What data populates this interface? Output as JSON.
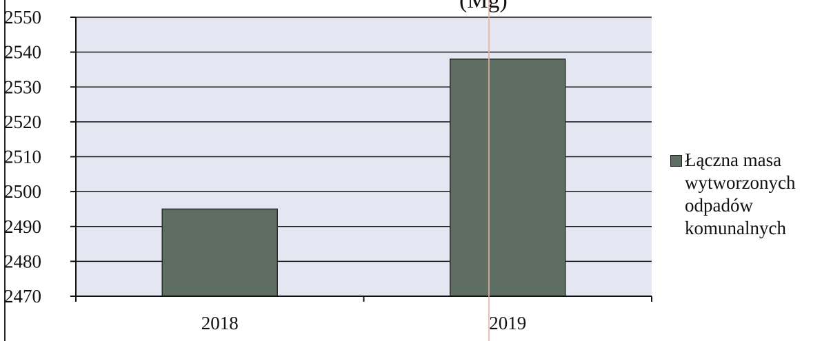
{
  "title_fragment": "(Mg)",
  "chart_data": {
    "type": "bar",
    "categories": [
      "2018",
      "2019"
    ],
    "series": [
      {
        "name": "Łączna masa wytworzonych odpadów komunalnych",
        "values": [
          2495,
          2538
        ]
      }
    ],
    "ylim": [
      2470,
      2550
    ],
    "yticks": [
      2470,
      2480,
      2490,
      2500,
      2510,
      2520,
      2530,
      2540,
      2550
    ],
    "grid": true,
    "legend_position": "right",
    "colors": {
      "bar": "#5f6e62",
      "plot_bg": "#e4e6f1",
      "grid": "#111111"
    }
  },
  "legend": {
    "lines": [
      "Łączna masa",
      "wytworzonych",
      "odpadów",
      "komunalnych"
    ]
  }
}
